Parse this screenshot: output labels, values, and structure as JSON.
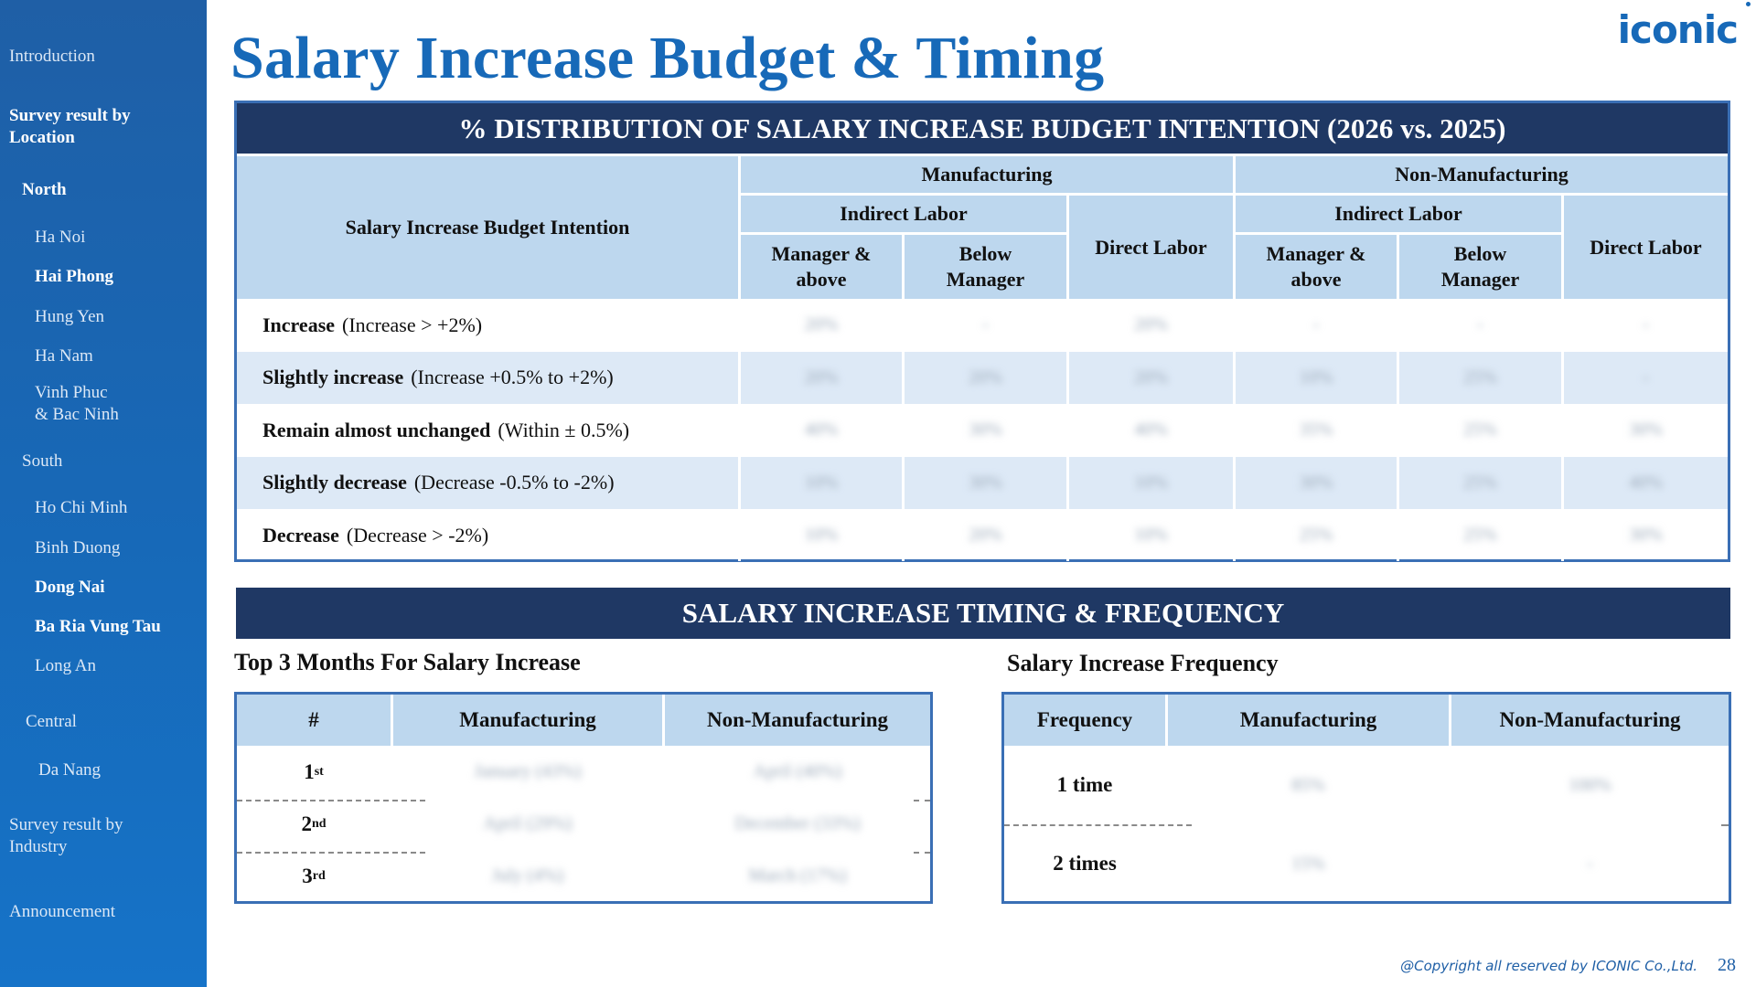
{
  "sidebar": {
    "items": [
      {
        "label": "Introduction"
      },
      {
        "label": "Survey result by\nLocation"
      },
      {
        "label": "North"
      },
      {
        "label": "Ha Noi"
      },
      {
        "label": "Hai Phong"
      },
      {
        "label": "Hung Yen"
      },
      {
        "label": "Ha Nam"
      },
      {
        "label": "Vinh Phuc\n& Bac Ninh"
      },
      {
        "label": "South"
      },
      {
        "label": "Ho Chi Minh"
      },
      {
        "label": "Binh Duong"
      },
      {
        "label": "Dong Nai"
      },
      {
        "label": "Ba Ria Vung Tau"
      },
      {
        "label": "Long An"
      },
      {
        "label": "Central"
      },
      {
        "label": "Da Nang"
      },
      {
        "label": "Survey result by\nIndustry"
      },
      {
        "label": "Announcement"
      }
    ]
  },
  "header": {
    "title": "Salary Increase Budget & Timing",
    "logo": "iconic"
  },
  "distribution": {
    "title": "% DISTRIBUTION OF SALARY INCREASE BUDGET INTENTION (2026 vs. 2025)",
    "col_label": "Salary Increase Budget Intention",
    "manufacturing": "Manufacturing",
    "non_manufacturing": "Non-Manufacturing",
    "indirect_labor": "Indirect Labor",
    "direct_labor": "Direct Labor",
    "manager_above": "Manager &\nabove",
    "below_manager": "Below\nManager",
    "rows": [
      {
        "label": "Increase",
        "desc": "(Increase > +2%)",
        "values": [
          "20%",
          "-",
          "20%",
          "-",
          "-",
          "-"
        ]
      },
      {
        "label": "Slightly increase",
        "desc": "(Increase +0.5% to +2%)",
        "values": [
          "20%",
          "20%",
          "20%",
          "10%",
          "25%",
          "-"
        ]
      },
      {
        "label": "Remain almost unchanged",
        "desc": "(Within ± 0.5%)",
        "values": [
          "40%",
          "30%",
          "40%",
          "35%",
          "25%",
          "30%"
        ]
      },
      {
        "label": "Slightly decrease",
        "desc": "(Decrease -0.5% to -2%)",
        "values": [
          "10%",
          "30%",
          "10%",
          "30%",
          "25%",
          "40%"
        ]
      },
      {
        "label": "Decrease",
        "desc": "(Decrease > -2%)",
        "values": [
          "10%",
          "20%",
          "10%",
          "25%",
          "25%",
          "30%"
        ]
      }
    ]
  },
  "timing": {
    "title": "SALARY INCREASE TIMING & FREQUENCY",
    "months_title": "Top 3 Months For Salary Increase",
    "months_headers": [
      "#",
      "Manufacturing",
      "Non-Manufacturing"
    ],
    "months_rows": [
      {
        "rank": "1",
        "suffix": "st",
        "mfg": "January (43%)",
        "nonmfg": "April (40%)"
      },
      {
        "rank": "2",
        "suffix": "nd",
        "mfg": "April (29%)",
        "nonmfg": "December (33%)"
      },
      {
        "rank": "3",
        "suffix": "rd",
        "mfg": "July (4%)",
        "nonmfg": "March (17%)"
      }
    ],
    "freq_title": "Salary Increase Frequency",
    "freq_headers": [
      "Frequency",
      "Manufacturing",
      "Non-Manufacturing"
    ],
    "freq_rows": [
      {
        "label": "1 time",
        "mfg": "85%",
        "nonmfg": "100%"
      },
      {
        "label": "2 times",
        "mfg": "15%",
        "nonmfg": "-"
      }
    ]
  },
  "footer": {
    "copyright": "@Copyright all reserved by ICONIC Co.,Ltd.",
    "page": "28"
  }
}
